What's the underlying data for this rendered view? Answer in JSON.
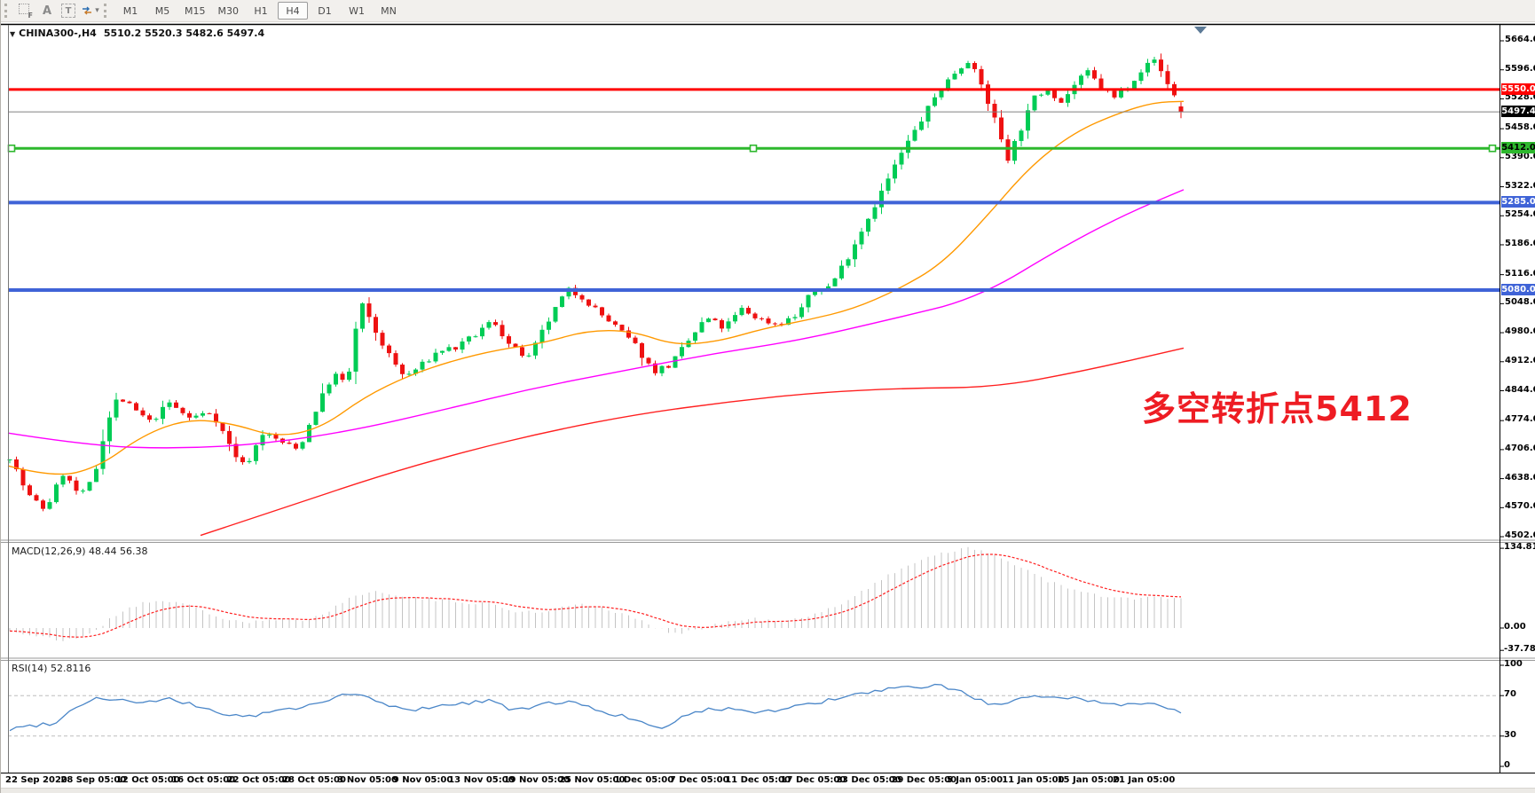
{
  "toolbar": {
    "icon_labels": {
      "grid_f": "F",
      "text_a": "A",
      "text_t": "T",
      "caret": "▾"
    },
    "timeframes": [
      "M1",
      "M5",
      "M15",
      "M30",
      "H1",
      "H4",
      "D1",
      "W1",
      "MN"
    ],
    "active_timeframe": "H4"
  },
  "chart": {
    "title_caret": "▼",
    "symbol_tf": "CHINA300-,H4",
    "ohlc_display": "5510.2 5520.3 5482.6 5497.4"
  },
  "annotation": {
    "text": "多空转折点5412",
    "color": "#ee1c23"
  },
  "indicators": {
    "macd": {
      "display": "MACD(12,26,9) 48.44 56.38",
      "scale": [
        "134.81",
        "0.00",
        "-37.78"
      ]
    },
    "rsi": {
      "display": "RSI(14) 52.8116",
      "scale": [
        "100",
        "70",
        "30",
        "0"
      ]
    }
  },
  "colors": {
    "up": "#00cc55",
    "down": "#ee1111",
    "ma_fast": "#ff9900",
    "ma_mid": "#ff00ff",
    "ma_slow": "#ff2020",
    "rsi_line": "#4a86c8",
    "macd_hist": "#c4c4c4",
    "macd_signal": "#ff2020",
    "level_red": "#ff0000",
    "level_green": "#2db82d",
    "level_blue": "#3f63d7",
    "current_gray": "#808080"
  },
  "chart_data": {
    "type": "candlestick",
    "symbol": "CHINA300-,H4",
    "timeframe": "H4",
    "last_bar": {
      "open": 5510.2,
      "high": 5520.3,
      "low": 5482.6,
      "close": 5497.4
    },
    "y_axis": {
      "min": 4502.0,
      "max": 5664.0,
      "ticks": [
        5664.0,
        5596.0,
        5528.0,
        5458.0,
        5390.0,
        5322.0,
        5254.0,
        5186.0,
        5116.0,
        5048.0,
        4980.0,
        4912.0,
        4844.0,
        4774.0,
        4706.0,
        4638.0,
        4570.0,
        4502.0
      ]
    },
    "x_labels": [
      "22 Sep 2020",
      "28 Sep 05:00",
      "12 Oct 05:00",
      "16 Oct 05:00",
      "22 Oct 05:00",
      "28 Oct 05:00",
      "3 Nov 05:00",
      "9 Nov 05:00",
      "13 Nov 05:00",
      "19 Nov 05:00",
      "25 Nov 05:00",
      "1 Dec 05:00",
      "7 Dec 05:00",
      "11 Dec 05:00",
      "17 Dec 05:00",
      "23 Dec 05:00",
      "29 Dec 05:00",
      "5 Jan 05:00",
      "11 Jan 05:00",
      "15 Jan 05:00",
      "21 Jan 05:00"
    ],
    "price_levels": [
      {
        "label": "5550.0",
        "price": 5550.0,
        "line": "#ff0000",
        "badge_bg": "#ff0000",
        "badge_fg": "#ffffff",
        "width": 3,
        "handles": false
      },
      {
        "label": "5497.4",
        "price": 5497.4,
        "line": "#808080",
        "badge_bg": "#000000",
        "badge_fg": "#ffffff",
        "width": 1,
        "handles": false
      },
      {
        "label": "5412.0",
        "price": 5412.0,
        "line": "#2db82d",
        "badge_bg": "#2db82d",
        "badge_fg": "#000000",
        "width": 3,
        "handles": true
      },
      {
        "label": "5285.0",
        "price": 5285.0,
        "line": "#3f63d7",
        "badge_bg": "#3f63d7",
        "badge_fg": "#ffffff",
        "width": 4,
        "handles": false
      },
      {
        "label": "5080.0",
        "price": 5080.0,
        "line": "#3f63d7",
        "badge_bg": "#3f63d7",
        "badge_fg": "#ffffff",
        "width": 4,
        "handles": false
      }
    ],
    "price_path": [
      [
        8,
        4700
      ],
      [
        30,
        4600
      ],
      [
        50,
        4565
      ],
      [
        70,
        4650
      ],
      [
        90,
        4595
      ],
      [
        105,
        4640
      ],
      [
        118,
        4760
      ],
      [
        132,
        4830
      ],
      [
        150,
        4800
      ],
      [
        168,
        4770
      ],
      [
        190,
        4815
      ],
      [
        212,
        4780
      ],
      [
        238,
        4795
      ],
      [
        262,
        4700
      ],
      [
        275,
        4665
      ],
      [
        295,
        4745
      ],
      [
        315,
        4725
      ],
      [
        335,
        4705
      ],
      [
        355,
        4800
      ],
      [
        375,
        4885
      ],
      [
        390,
        4855
      ],
      [
        405,
        5055
      ],
      [
        420,
        4990
      ],
      [
        438,
        4925
      ],
      [
        455,
        4875
      ],
      [
        475,
        4905
      ],
      [
        495,
        4940
      ],
      [
        515,
        4945
      ],
      [
        535,
        4975
      ],
      [
        555,
        5010
      ],
      [
        575,
        4945
      ],
      [
        595,
        4920
      ],
      [
        615,
        5000
      ],
      [
        638,
        5080
      ],
      [
        655,
        5065
      ],
      [
        675,
        5025
      ],
      [
        695,
        4990
      ],
      [
        715,
        4950
      ],
      [
        735,
        4890
      ],
      [
        755,
        4905
      ],
      [
        775,
        4960
      ],
      [
        795,
        5015
      ],
      [
        815,
        4990
      ],
      [
        835,
        5035
      ],
      [
        855,
        5012
      ],
      [
        875,
        5000
      ],
      [
        895,
        5018
      ],
      [
        915,
        5075
      ],
      [
        935,
        5090
      ],
      [
        955,
        5160
      ],
      [
        975,
        5240
      ],
      [
        995,
        5320
      ],
      [
        1015,
        5400
      ],
      [
        1035,
        5470
      ],
      [
        1055,
        5540
      ],
      [
        1075,
        5590
      ],
      [
        1090,
        5620
      ],
      [
        1105,
        5560
      ],
      [
        1120,
        5480
      ],
      [
        1135,
        5390
      ],
      [
        1150,
        5460
      ],
      [
        1165,
        5530
      ],
      [
        1180,
        5555
      ],
      [
        1195,
        5520
      ],
      [
        1210,
        5560
      ],
      [
        1225,
        5590
      ],
      [
        1240,
        5555
      ],
      [
        1255,
        5530
      ],
      [
        1270,
        5560
      ],
      [
        1285,
        5595
      ],
      [
        1300,
        5620
      ],
      [
        1315,
        5565
      ],
      [
        1332,
        5500
      ]
    ],
    "ma_fast_path": [
      [
        8,
        4668
      ],
      [
        60,
        4640
      ],
      [
        110,
        4665
      ],
      [
        160,
        4740
      ],
      [
        210,
        4778
      ],
      [
        260,
        4768
      ],
      [
        310,
        4735
      ],
      [
        360,
        4755
      ],
      [
        410,
        4830
      ],
      [
        460,
        4880
      ],
      [
        510,
        4915
      ],
      [
        560,
        4940
      ],
      [
        610,
        4955
      ],
      [
        660,
        4985
      ],
      [
        710,
        4985
      ],
      [
        760,
        4950
      ],
      [
        810,
        4960
      ],
      [
        860,
        4990
      ],
      [
        910,
        5010
      ],
      [
        960,
        5035
      ],
      [
        1010,
        5080
      ],
      [
        1060,
        5140
      ],
      [
        1110,
        5250
      ],
      [
        1160,
        5370
      ],
      [
        1210,
        5450
      ],
      [
        1260,
        5495
      ],
      [
        1300,
        5520
      ],
      [
        1333,
        5522
      ]
    ],
    "ma_mid_path": [
      [
        8,
        4745
      ],
      [
        100,
        4715
      ],
      [
        200,
        4708
      ],
      [
        300,
        4720
      ],
      [
        400,
        4752
      ],
      [
        500,
        4800
      ],
      [
        600,
        4850
      ],
      [
        700,
        4890
      ],
      [
        800,
        4930
      ],
      [
        900,
        4962
      ],
      [
        1000,
        5010
      ],
      [
        1100,
        5060
      ],
      [
        1200,
        5185
      ],
      [
        1270,
        5260
      ],
      [
        1333,
        5315
      ]
    ],
    "ma_slow_path": [
      [
        225,
        4505
      ],
      [
        320,
        4570
      ],
      [
        420,
        4640
      ],
      [
        520,
        4700
      ],
      [
        620,
        4750
      ],
      [
        720,
        4790
      ],
      [
        820,
        4818
      ],
      [
        920,
        4840
      ],
      [
        1020,
        4850
      ],
      [
        1120,
        4852
      ],
      [
        1220,
        4890
      ],
      [
        1333,
        4944
      ]
    ],
    "macd": {
      "params": "12,26,9",
      "current_macd": 48.44,
      "current_signal": 56.38,
      "scale_max": 134.81,
      "scale_min": -37.78,
      "path": [
        [
          8,
          -4
        ],
        [
          40,
          -14
        ],
        [
          70,
          -22
        ],
        [
          100,
          -10
        ],
        [
          130,
          22
        ],
        [
          160,
          44
        ],
        [
          190,
          46
        ],
        [
          220,
          34
        ],
        [
          250,
          16
        ],
        [
          280,
          9
        ],
        [
          310,
          14
        ],
        [
          340,
          11
        ],
        [
          370,
          30
        ],
        [
          400,
          56
        ],
        [
          430,
          62
        ],
        [
          460,
          52
        ],
        [
          490,
          47
        ],
        [
          520,
          44
        ],
        [
          550,
          41
        ],
        [
          580,
          28
        ],
        [
          610,
          27
        ],
        [
          640,
          40
        ],
        [
          670,
          37
        ],
        [
          700,
          24
        ],
        [
          730,
          6
        ],
        [
          760,
          -9
        ],
        [
          790,
          -1
        ],
        [
          820,
          11
        ],
        [
          850,
          15
        ],
        [
          880,
          11
        ],
        [
          910,
          18
        ],
        [
          940,
          36
        ],
        [
          970,
          62
        ],
        [
          1000,
          88
        ],
        [
          1030,
          112
        ],
        [
          1060,
          128
        ],
        [
          1090,
          134
        ],
        [
          1120,
          124
        ],
        [
          1150,
          103
        ],
        [
          1180,
          80
        ],
        [
          1210,
          63
        ],
        [
          1240,
          54
        ],
        [
          1270,
          49
        ],
        [
          1300,
          52
        ],
        [
          1332,
          48.44
        ]
      ]
    },
    "rsi": {
      "period": 14,
      "current": 52.8116,
      "levels": [
        70,
        30
      ],
      "path": [
        [
          8,
          36
        ],
        [
          30,
          40
        ],
        [
          60,
          43
        ],
        [
          90,
          62
        ],
        [
          110,
          68
        ],
        [
          130,
          66
        ],
        [
          160,
          63
        ],
        [
          190,
          66
        ],
        [
          220,
          60
        ],
        [
          250,
          52
        ],
        [
          280,
          49
        ],
        [
          310,
          55
        ],
        [
          340,
          58
        ],
        [
          370,
          67
        ],
        [
          400,
          72
        ],
        [
          430,
          62
        ],
        [
          460,
          55
        ],
        [
          490,
          60
        ],
        [
          520,
          62
        ],
        [
          550,
          66
        ],
        [
          580,
          55
        ],
        [
          610,
          61
        ],
        [
          640,
          65
        ],
        [
          670,
          56
        ],
        [
          700,
          50
        ],
        [
          730,
          40
        ],
        [
          745,
          36
        ],
        [
          760,
          46
        ],
        [
          790,
          55
        ],
        [
          820,
          58
        ],
        [
          850,
          54
        ],
        [
          880,
          56
        ],
        [
          910,
          62
        ],
        [
          940,
          66
        ],
        [
          970,
          72
        ],
        [
          1000,
          76
        ],
        [
          1030,
          78
        ],
        [
          1060,
          80
        ],
        [
          1090,
          71
        ],
        [
          1120,
          60
        ],
        [
          1150,
          66
        ],
        [
          1180,
          70
        ],
        [
          1210,
          68
        ],
        [
          1240,
          63
        ],
        [
          1270,
          61
        ],
        [
          1300,
          64
        ],
        [
          1332,
          52.81
        ]
      ]
    }
  }
}
